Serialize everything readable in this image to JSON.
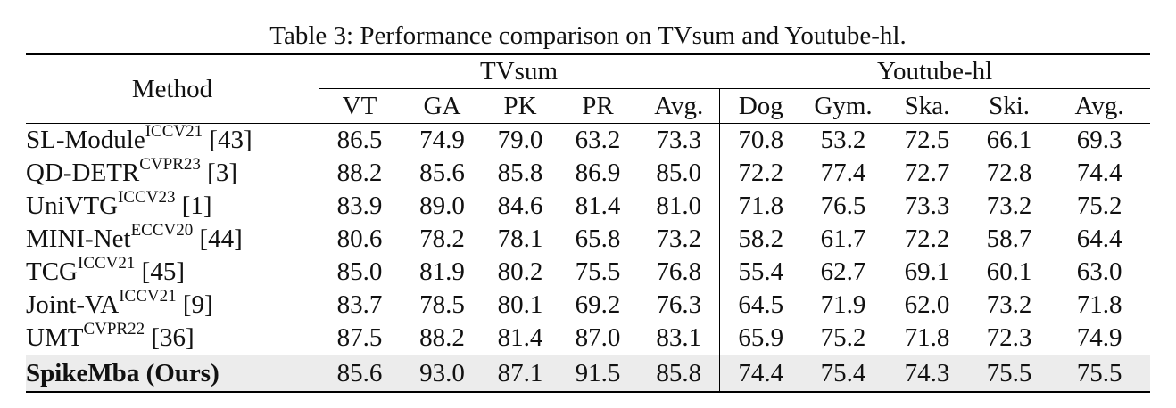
{
  "caption": "Table 3: Performance comparison on TVsum and Youtube-hl.",
  "header": {
    "method": "Method",
    "groups": [
      "TVsum",
      "Youtube-hl"
    ],
    "tvsum_cols": [
      "VT",
      "GA",
      "PK",
      "PR",
      "Avg."
    ],
    "youtube_cols": [
      "Dog",
      "Gym.",
      "Ska.",
      "Ski.",
      "Avg."
    ]
  },
  "rows": [
    {
      "name": "SL-Module",
      "venue": "ICCV21",
      "ref": "[43]",
      "values": [
        "86.5",
        "74.9",
        "79.0",
        "63.2",
        "73.3",
        "70.8",
        "53.2",
        "72.5",
        "66.1",
        "69.3"
      ],
      "bold": []
    },
    {
      "name": "QD-DETR",
      "venue": "CVPR23",
      "ref": "[3]",
      "values": [
        "88.2",
        "85.6",
        "85.8",
        "86.9",
        "85.0",
        "72.2",
        "77.4",
        "72.7",
        "72.8",
        "74.4"
      ],
      "bold": [
        6
      ]
    },
    {
      "name": "UniVTG",
      "venue": "ICCV23",
      "ref": "[1]",
      "values": [
        "83.9",
        "89.0",
        "84.6",
        "81.4",
        "81.0",
        "71.8",
        "76.5",
        "73.3",
        "73.2",
        "75.2"
      ],
      "bold": []
    },
    {
      "name": "MINI-Net",
      "venue": "ECCV20",
      "ref": "[44]",
      "values": [
        "80.6",
        "78.2",
        "78.1",
        "65.8",
        "73.2",
        "58.2",
        "61.7",
        "72.2",
        "58.7",
        "64.4"
      ],
      "bold": []
    },
    {
      "name": "TCG",
      "venue": "ICCV21",
      "ref": "[45]",
      "values": [
        "85.0",
        "81.9",
        "80.2",
        "75.5",
        "76.8",
        "55.4",
        "62.7",
        "69.1",
        "60.1",
        "63.0"
      ],
      "bold": []
    },
    {
      "name": "Joint-VA",
      "venue": "ICCV21",
      "ref": "[9]",
      "values": [
        "83.7",
        "78.5",
        "80.1",
        "69.2",
        "76.3",
        "64.5",
        "71.9",
        "62.0",
        "73.2",
        "71.8"
      ],
      "bold": []
    },
    {
      "name": "UMT",
      "venue": "CVPR22",
      "ref": "[36]",
      "values": [
        "87.5",
        "88.2",
        "81.4",
        "87.0",
        "83.1",
        "65.9",
        "75.2",
        "71.8",
        "72.3",
        "74.9"
      ],
      "bold": [
        0
      ]
    }
  ],
  "last_row": {
    "name": "SpikeMba (Ours)",
    "values": [
      "85.6",
      "93.0",
      "87.1",
      "91.5",
      "85.8",
      "74.4",
      "75.4",
      "74.3",
      "75.5",
      "75.5"
    ],
    "bold": [
      1,
      2,
      3,
      4,
      5,
      7,
      8,
      9
    ]
  }
}
